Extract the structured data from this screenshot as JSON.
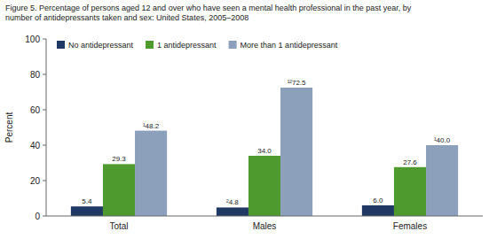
{
  "chart_data": {
    "type": "bar",
    "title": "Figure 5. Percentage of persons aged 12 and over who have seen a mental health professional in the past year, by\nnumber of antidepressants taken and sex: United States, 2005–2008",
    "categories": [
      "Total",
      "Males",
      "Females"
    ],
    "series": [
      {
        "name": "No antidepressant",
        "color": "#1f3864",
        "values": [
          5.4,
          4.8,
          6.0
        ],
        "value_labels": [
          "5.4",
          "²4.8",
          "6.0"
        ]
      },
      {
        "name": "1 antidepressant",
        "color": "#4e9a2e",
        "values": [
          29.3,
          34.0,
          27.6
        ],
        "value_labels": [
          "29.3",
          "34.0",
          "27.6"
        ]
      },
      {
        "name": "More than 1 antidepressant",
        "color": "#8c9fbb",
        "values": [
          48.2,
          72.5,
          40.0
        ],
        "value_labels": [
          "¹48.2",
          "¹²72.5",
          "¹40.0"
        ]
      }
    ],
    "ylabel": "Percent",
    "ylim": [
      0,
      100
    ],
    "yticks": [
      0,
      20,
      40,
      60,
      80,
      100
    ],
    "grid": false,
    "legend": "upper left",
    "data_labels": true
  }
}
